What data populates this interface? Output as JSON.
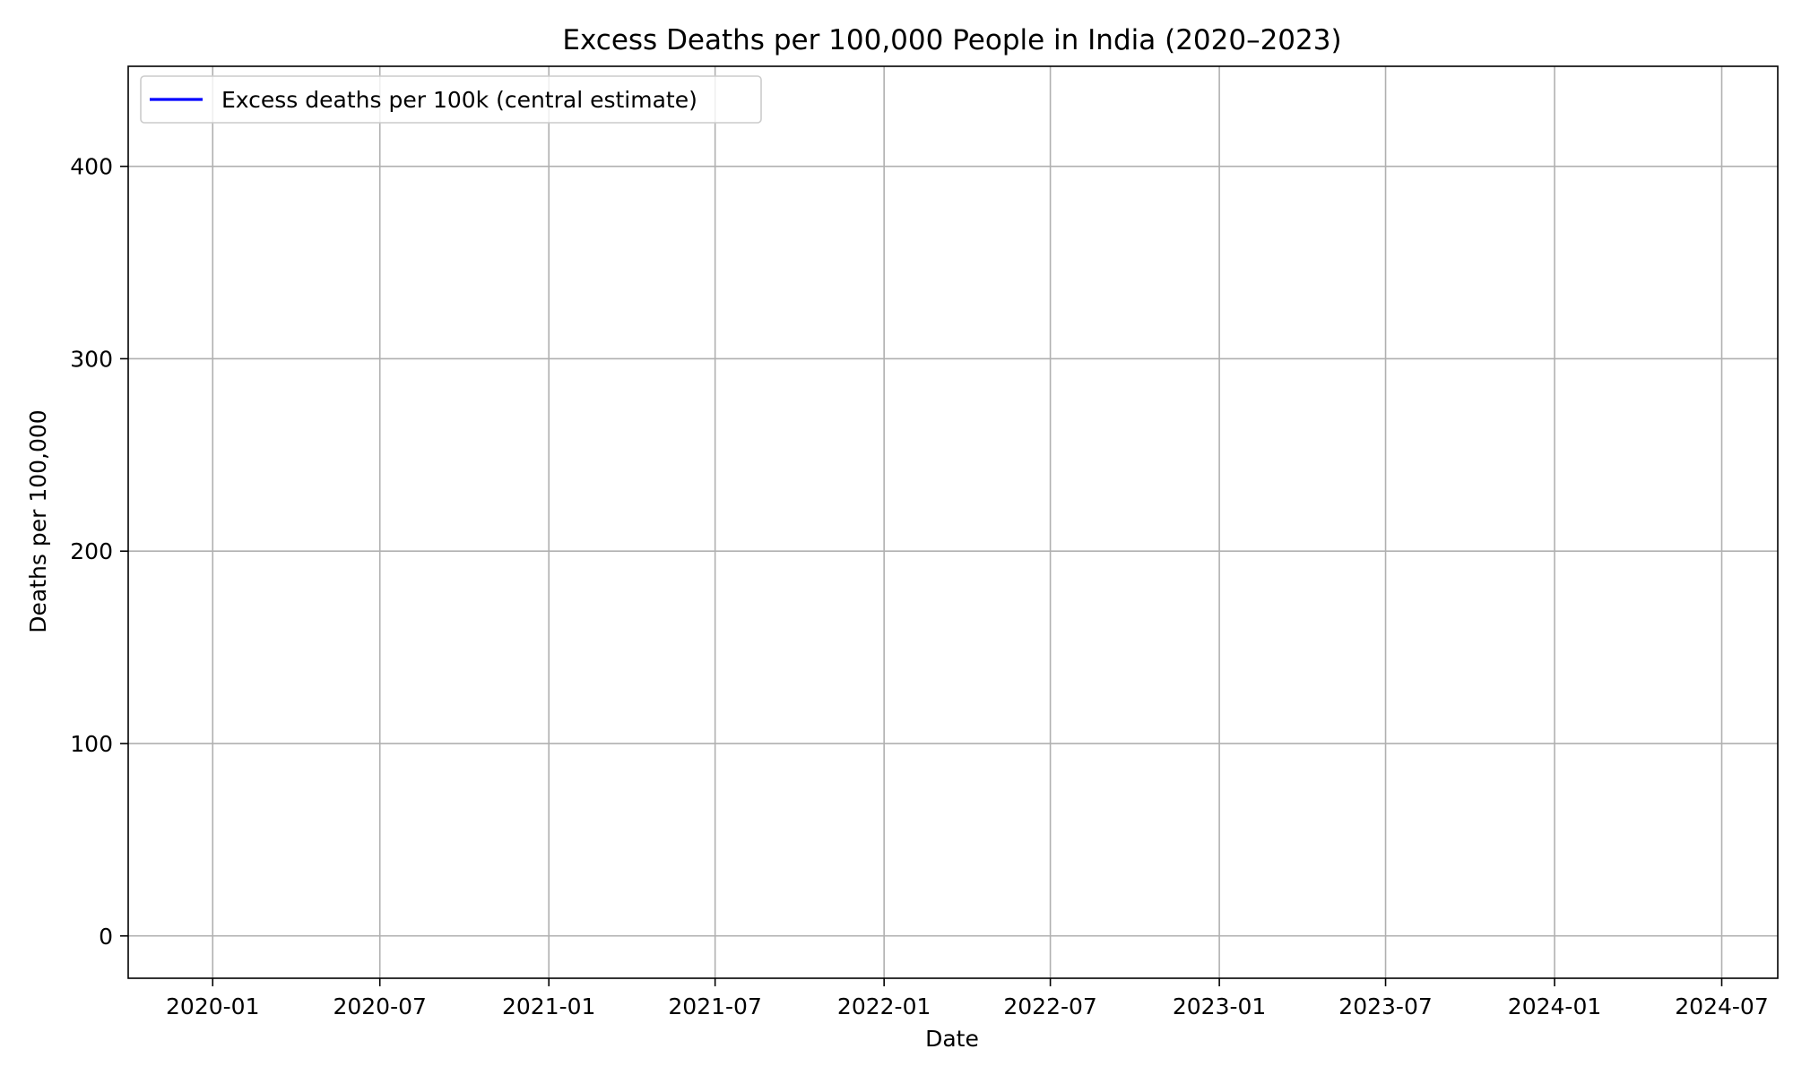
{
  "chart_data": {
    "type": "line",
    "title": "Excess Deaths per 100,000 People in India (2020–2023)",
    "xlabel": "Date",
    "ylabel": "Deaths per 100,000",
    "x_axis_type": "date",
    "xlim": [
      "2019-10-01",
      "2024-08-31"
    ],
    "ylim": [
      -22,
      452
    ],
    "x_ticks": [
      "2020-01",
      "2020-07",
      "2021-01",
      "2021-07",
      "2022-01",
      "2022-07",
      "2023-01",
      "2023-07",
      "2024-01",
      "2024-07"
    ],
    "y_ticks": [
      0,
      100,
      200,
      300,
      400
    ],
    "grid": true,
    "legend_position": "top-left",
    "series": [
      {
        "name": "Excess deaths per 100k (central estimate)",
        "color": "#0000ff",
        "x": [],
        "y": []
      }
    ]
  }
}
